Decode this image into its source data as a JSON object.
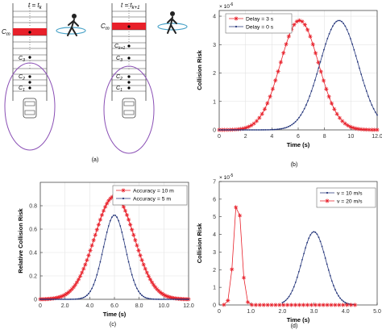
{
  "panel_a": {
    "caption": "(a)",
    "left": {
      "time_label": "t = t",
      "time_sub": "k",
      "cells": [
        {
          "label": "C",
          "sub": "m"
        },
        {
          "label": "C",
          "sub": "3"
        },
        {
          "label": "C",
          "sub": "2"
        },
        {
          "label": "C",
          "sub": "1"
        }
      ]
    },
    "right": {
      "time_label": "t = t",
      "time_sub": "k+1",
      "cells": [
        {
          "label": "C",
          "sub": "m"
        },
        {
          "label": "C",
          "sub": "k+1"
        },
        {
          "label": "C",
          "sub": "3"
        },
        {
          "label": "C",
          "sub": "2"
        },
        {
          "label": "C",
          "sub": "1"
        }
      ]
    },
    "colors": {
      "highlight": "#e8202a",
      "ellipse": "#8a4fb5",
      "ring": "#4aa3c8"
    }
  },
  "chart_data": [
    {
      "id": "b",
      "caption": "(b)",
      "type": "line",
      "xlabel": "Time (s)",
      "ylabel": "Collision Risk",
      "multiplier": "× 10",
      "multiplier_exp": "-6",
      "xlim": [
        0,
        12
      ],
      "ylim": [
        0,
        4.2
      ],
      "xticks": [
        "0",
        "2",
        "4",
        "6",
        "8",
        "10",
        "12.0"
      ],
      "yticks": [
        "0",
        "1",
        "2",
        "3",
        "4"
      ],
      "grid": true,
      "legend_position": "top-left",
      "series": [
        {
          "name": "Delay = 3 s",
          "color": "#e8202a",
          "marker": "star",
          "shape": "gaussian",
          "peak": 3.85,
          "center": 6.1,
          "sigma": 1.45,
          "x": [
            0,
            12.0
          ],
          "n": 60
        },
        {
          "name": "Delay = 0 s",
          "color": "#24357a",
          "marker": "dot",
          "shape": "gaussian",
          "peak": 3.85,
          "center": 9.1,
          "sigma": 1.45,
          "x": [
            0,
            12.0
          ],
          "n": 90
        }
      ]
    },
    {
      "id": "c",
      "caption": "(c)",
      "type": "line",
      "xlabel": "Time (s)",
      "ylabel": "Relative Collision Risk",
      "xlim": [
        0,
        12
      ],
      "ylim": [
        0,
        1.0
      ],
      "xticks": [
        "0",
        "2.0",
        "4.0",
        "6.0",
        "8.0",
        "10.0",
        "12.0"
      ],
      "yticks": [
        "0",
        "0.2",
        "0.4",
        "0.6",
        "0.8"
      ],
      "grid": true,
      "legend_position": "top-right",
      "series": [
        {
          "name": "Accuracy = 10 m",
          "color": "#e8202a",
          "marker": "star",
          "shape": "gaussian",
          "peak": 0.88,
          "center": 6.0,
          "sigma": 1.6,
          "x": [
            0,
            12.0
          ],
          "n": 90
        },
        {
          "name": "Accuracy = 5 m",
          "color": "#24357a",
          "marker": "dot",
          "shape": "gaussian",
          "peak": 0.72,
          "center": 6.0,
          "sigma": 0.9,
          "x": [
            0,
            12.0
          ],
          "n": 90
        }
      ]
    },
    {
      "id": "d",
      "caption": "(d)",
      "type": "line",
      "xlabel": "Time (s)",
      "ylabel": "Collision Risk",
      "multiplier": "× 10",
      "multiplier_exp": "-5",
      "xlim": [
        0,
        5
      ],
      "ylim": [
        0,
        7
      ],
      "xticks": [
        "0",
        "1.0",
        "2.0",
        "3.0",
        "4.0",
        "5.0"
      ],
      "yticks": [
        "0",
        "1",
        "2",
        "3",
        "4",
        "5",
        "6",
        "7"
      ],
      "grid": false,
      "legend_position": "top-right",
      "series": [
        {
          "name": "v = 10 m/s",
          "color": "#24357a",
          "marker": "dot",
          "shape": "gaussian",
          "peak": 4.15,
          "center": 3.0,
          "sigma": 0.38,
          "x": [
            2.0,
            4.3
          ],
          "n": 45
        },
        {
          "name": "v = 20 m/s",
          "color": "#e8202a",
          "marker": "star",
          "shape": "gaussian",
          "peak": 6.1,
          "center": 0.58,
          "sigma": 0.12,
          "x": [
            0.15,
            4.3
          ],
          "n": 34
        }
      ]
    }
  ]
}
